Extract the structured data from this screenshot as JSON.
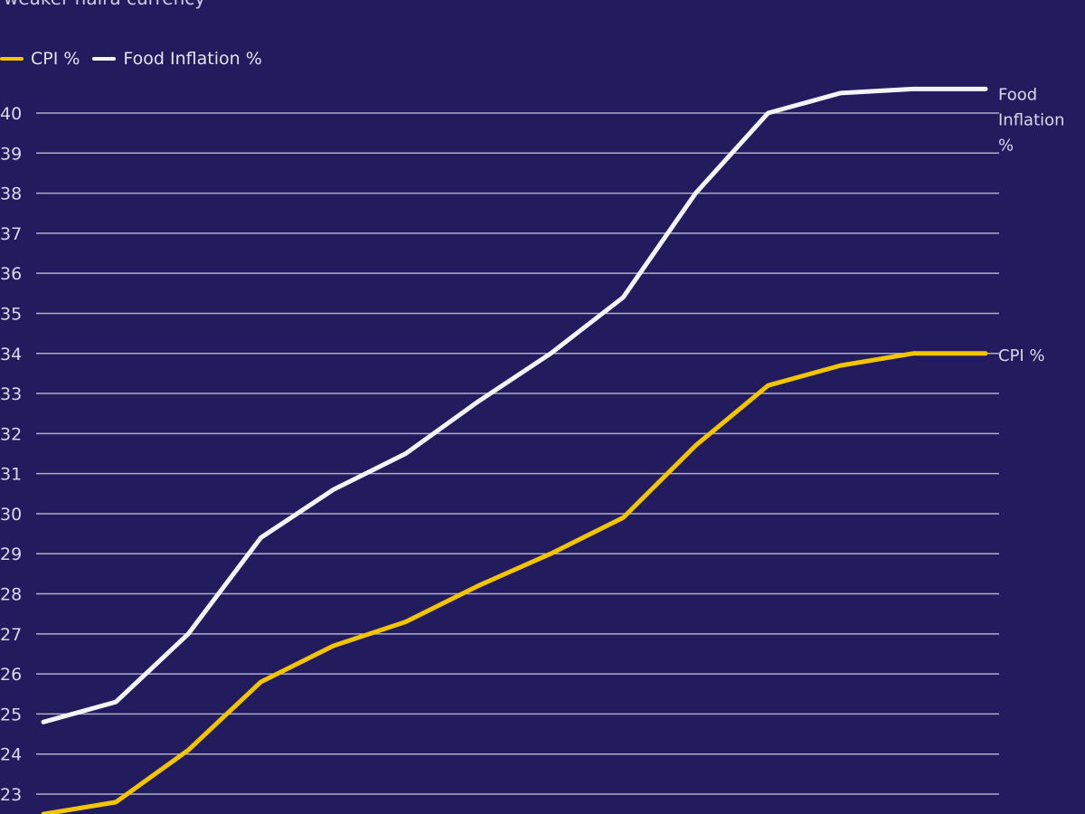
{
  "subtitle": "weaker naira currency",
  "colors": {
    "background": "#221b5e",
    "gridline": "#c8c8dc",
    "cpi": "#f2c500",
    "food": "#f4f4f8",
    "text": "#d9d9e8"
  },
  "legend": {
    "items": [
      {
        "label": "CPI %",
        "color": "#f2c500"
      },
      {
        "label": "Food Inflation %",
        "color": "#f4f4f8"
      }
    ]
  },
  "chart_data": {
    "type": "line",
    "title": "",
    "xlabel": "",
    "ylabel": "",
    "ylim": [
      22.5,
      40.6
    ],
    "yticks": [
      23,
      24,
      25,
      26,
      27,
      28,
      29,
      30,
      31,
      32,
      33,
      34,
      35,
      36,
      37,
      38,
      39,
      40
    ],
    "ytick_labels": [
      "23",
      "24",
      "25",
      "26",
      "27",
      "28",
      "29",
      "30",
      "31",
      "32",
      "33",
      "34",
      "35",
      "36",
      "37",
      "38",
      "39",
      "40"
    ],
    "grid": true,
    "legend_position": "top-left",
    "x": [
      0,
      1,
      2,
      3,
      4,
      5,
      6,
      7,
      8,
      9,
      10,
      11,
      12,
      13
    ],
    "series": [
      {
        "name": "Food Inflation %",
        "end_label": [
          "Food",
          "Inflation",
          "%"
        ],
        "color": "#f4f4f8",
        "values": [
          24.8,
          25.3,
          27.0,
          29.4,
          30.6,
          31.5,
          32.8,
          34.0,
          35.4,
          38.0,
          40.0,
          40.5,
          40.6,
          40.6
        ]
      },
      {
        "name": "CPI %",
        "end_label": [
          "CPI %"
        ],
        "color": "#f2c500",
        "values": [
          22.5,
          22.8,
          24.1,
          25.8,
          26.7,
          27.3,
          28.2,
          29.0,
          29.9,
          31.7,
          33.2,
          33.7,
          34.0,
          34.0
        ]
      }
    ]
  }
}
